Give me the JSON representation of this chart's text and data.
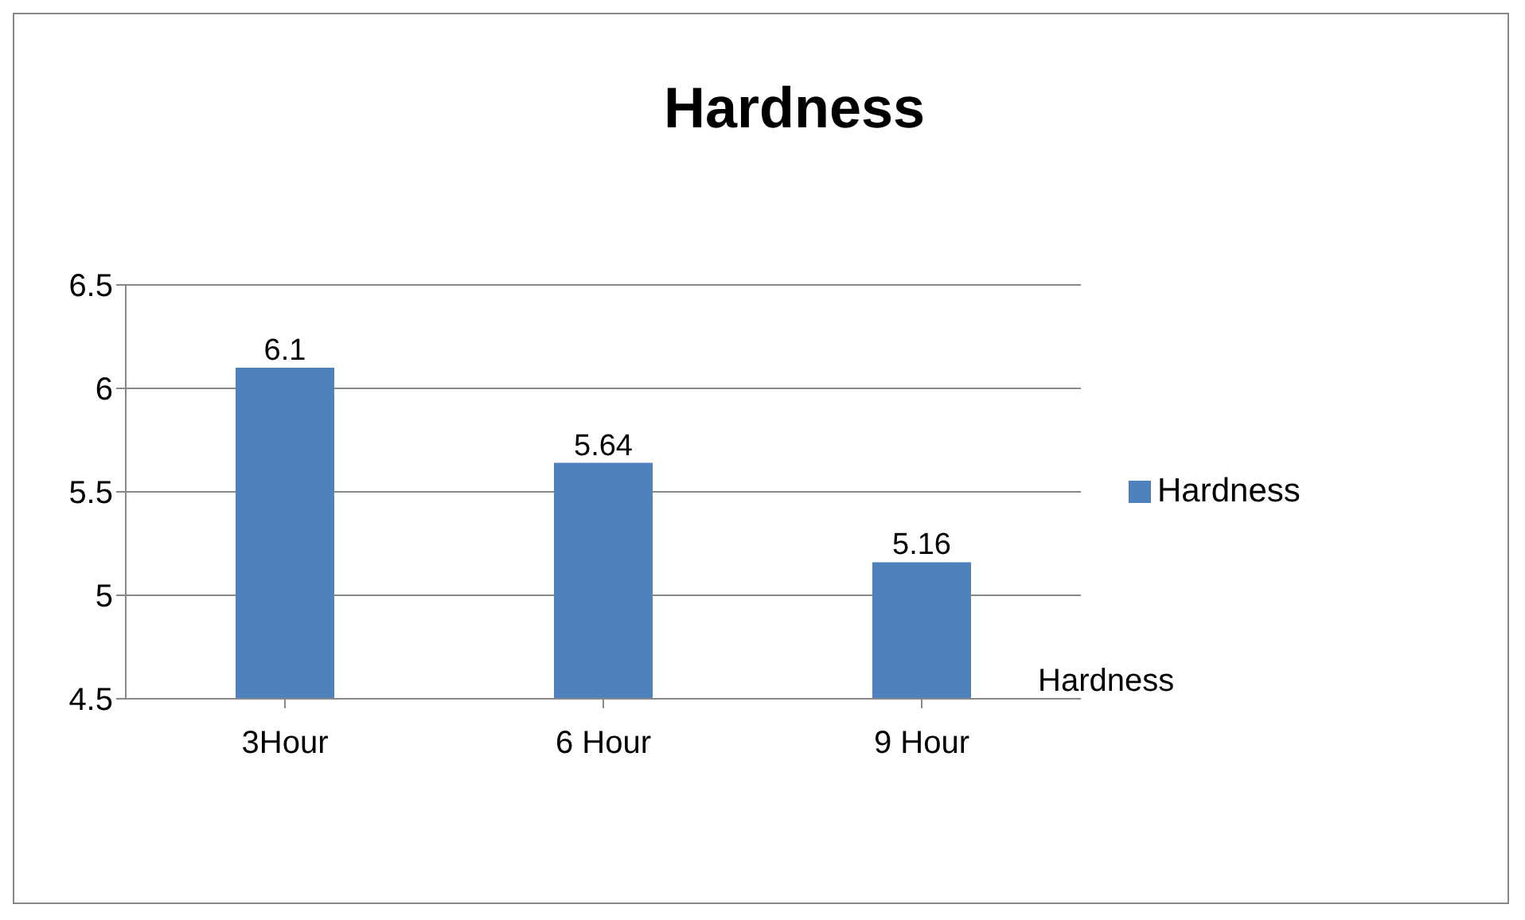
{
  "chart_data": {
    "type": "bar",
    "title": "Hardness",
    "categories": [
      "3Hour",
      "6 Hour",
      "9 Hour"
    ],
    "series": [
      {
        "name": "Hardness",
        "color": "#4f81bd",
        "values": [
          6.1,
          5.64,
          5.16
        ]
      }
    ],
    "ylim": [
      4.5,
      6.5
    ],
    "yticks": [
      4.5,
      5,
      5.5,
      6,
      6.5
    ],
    "grid": "y",
    "legend": "right",
    "data_labels": true,
    "annotations": [
      "Hardness"
    ]
  }
}
